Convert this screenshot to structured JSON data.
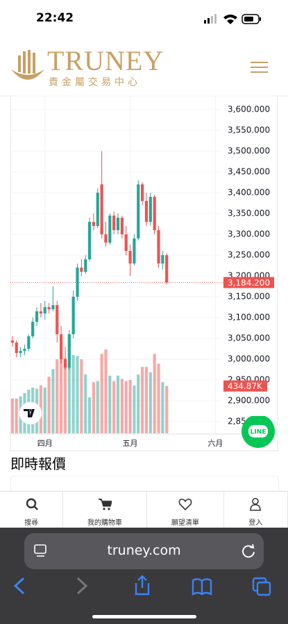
{
  "status_bar": {
    "time": "22:42"
  },
  "header": {
    "logo": "TRUNEY",
    "subtitle": "貴金屬交易中心"
  },
  "chart_data": {
    "type": "candlestick",
    "x": [
      0,
      1,
      2,
      3,
      4,
      5,
      6,
      7,
      8,
      9,
      10,
      11,
      12,
      13,
      14,
      15,
      16,
      17,
      18,
      19,
      20,
      21,
      22,
      23,
      24,
      25,
      26,
      27,
      28,
      29,
      30,
      31,
      32,
      33,
      34,
      35,
      36,
      37,
      38
    ],
    "open": [
      3045,
      3040,
      3015,
      3020,
      3025,
      3055,
      3090,
      3115,
      3110,
      3125,
      3120,
      3130,
      3060,
      3000,
      2980,
      3060,
      3150,
      3220,
      3210,
      3240,
      3330,
      3320,
      3420,
      3300,
      3280,
      3345,
      3310,
      3340,
      3300,
      3260,
      3230,
      3290,
      3420,
      3380,
      3330,
      3390,
      3310,
      3230,
      3250
    ],
    "high": [
      3055,
      3045,
      3030,
      3035,
      3060,
      3100,
      3125,
      3135,
      3140,
      3135,
      3175,
      3140,
      3080,
      3030,
      3070,
      3165,
      3230,
      3240,
      3250,
      3340,
      3350,
      3410,
      3500,
      3330,
      3350,
      3355,
      3350,
      3345,
      3320,
      3275,
      3300,
      3430,
      3425,
      3400,
      3400,
      3395,
      3320,
      3260,
      3255
    ],
    "low": [
      3030,
      3005,
      3005,
      3010,
      3020,
      3050,
      3080,
      3100,
      3095,
      3110,
      3115,
      3040,
      2990,
      2975,
      2975,
      3050,
      3140,
      3200,
      3205,
      3235,
      3310,
      3315,
      3290,
      3270,
      3275,
      3300,
      3300,
      3290,
      3250,
      3200,
      3225,
      3285,
      3370,
      3320,
      3320,
      3300,
      3220,
      3215,
      3180
    ],
    "close": [
      3040,
      3015,
      3020,
      3025,
      3055,
      3090,
      3115,
      3110,
      3125,
      3120,
      3130,
      3060,
      3000,
      2980,
      3060,
      3150,
      3220,
      3210,
      3240,
      3330,
      3320,
      3400,
      3300,
      3280,
      3345,
      3310,
      3340,
      3300,
      3260,
      3230,
      3290,
      3420,
      3380,
      3330,
      3390,
      3310,
      3230,
      3250,
      3184.2
    ],
    "volume": [
      320,
      320,
      340,
      370,
      400,
      420,
      410,
      440,
      420,
      520,
      590,
      680,
      700,
      690,
      640,
      720,
      710,
      680,
      540,
      330,
      470,
      480,
      730,
      770,
      530,
      480,
      530,
      500,
      480,
      490,
      440,
      540,
      610,
      610,
      560,
      730,
      640,
      470,
      434.87
    ],
    "colors": {
      "up": "#26a69a",
      "down": "#ef5350"
    },
    "ylim": [
      2822,
      3633
    ],
    "yticks": [
      {
        "value": 2850,
        "label": "2,850.000"
      },
      {
        "value": 2900,
        "label": "2,900.000"
      },
      {
        "value": 2950,
        "label": "2,950.000"
      },
      {
        "value": 3000,
        "label": "3,000.000"
      },
      {
        "value": 3050,
        "label": "3,050.000"
      },
      {
        "value": 3100,
        "label": "3,100.000"
      },
      {
        "value": 3150,
        "label": "3,150.000"
      },
      {
        "value": 3200,
        "label": "3,200.000"
      },
      {
        "value": 3250,
        "label": "3,250.000"
      },
      {
        "value": 3300,
        "label": "3,300.000"
      },
      {
        "value": 3350,
        "label": "3,350.000"
      },
      {
        "value": 3400,
        "label": "3,400.000"
      },
      {
        "value": 3450,
        "label": "3,450.000"
      },
      {
        "value": 3500,
        "label": "3,500.000"
      },
      {
        "value": 3550,
        "label": "3,550.000"
      },
      {
        "value": 3600,
        "label": "3,600.000"
      }
    ],
    "xlim": [
      -0.5,
      51.3
    ],
    "xticks": [
      {
        "value": 8,
        "label": "四月"
      },
      {
        "value": 29,
        "label": "五月"
      },
      {
        "value": 50,
        "label": "六月"
      }
    ],
    "volume_lim": [
      0,
      3100
    ],
    "last_price_label": "3,184.200",
    "last_volume_label": "434.87K",
    "grid": true
  },
  "section": {
    "title": "即時報價"
  },
  "nav": [
    "搜尋",
    "我的購物車",
    "願望清單",
    "登入"
  ],
  "chat_button": "LINE",
  "browser": {
    "url": "truney.com"
  }
}
